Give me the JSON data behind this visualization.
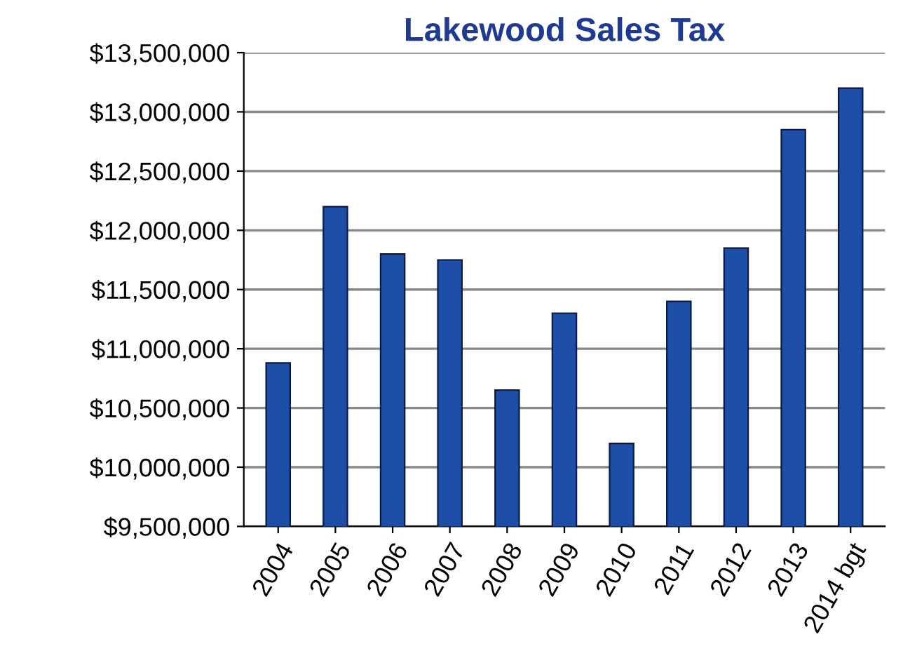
{
  "chart_data": {
    "type": "bar",
    "title": "Lakewood Sales Tax",
    "categories": [
      "2004",
      "2005",
      "2006",
      "2007",
      "2008",
      "2009",
      "2010",
      "2011",
      "2012",
      "2013",
      "2014 bgt"
    ],
    "values": [
      10880000,
      12200000,
      11800000,
      11750000,
      10650000,
      11300000,
      10200000,
      11400000,
      11850000,
      12850000,
      13200000
    ],
    "color": "#1d4fa8",
    "ylim": [
      9500000,
      13500000
    ],
    "yticks": [
      {
        "value": 9500000,
        "label": "$9,500,000"
      },
      {
        "value": 10000000,
        "label": "$10,000,000"
      },
      {
        "value": 10500000,
        "label": "$10,500,000"
      },
      {
        "value": 11000000,
        "label": "$11,000,000"
      },
      {
        "value": 11500000,
        "label": "$11,500,000"
      },
      {
        "value": 12000000,
        "label": "$12,000,000"
      },
      {
        "value": 12500000,
        "label": "$12,500,000"
      },
      {
        "value": 13000000,
        "label": "$13,000,000"
      },
      {
        "value": 13500000,
        "label": "$13,500,000"
      }
    ],
    "grid": "y"
  }
}
